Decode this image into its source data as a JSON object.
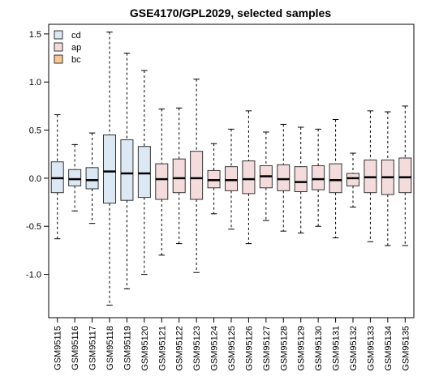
{
  "chart_data": {
    "type": "boxplot",
    "title": "GSE4170/GPL2029, selected samples",
    "xlabel": "",
    "ylabel": "",
    "ylim": [
      -1.45,
      1.6
    ],
    "yticks": [
      -1.0,
      -0.5,
      0.0,
      0.5,
      1.0,
      1.5
    ],
    "ytick_labels": [
      "-1.0",
      "-0.5",
      "0.0",
      "0.5",
      "1.0",
      "1.5"
    ],
    "legend": {
      "placement": "top-left",
      "entries": [
        {
          "label": "cd",
          "color": "#dce8f4"
        },
        {
          "label": "ap",
          "color": "#f4dcdc"
        },
        {
          "label": "bc",
          "color": "#f8c890"
        }
      ]
    },
    "box_colors": {
      "cd": "#dce8f4",
      "ap": "#f4dcdc",
      "bc": "#f8c890"
    },
    "categories": [
      "GSM95115",
      "GSM95116",
      "GSM95117",
      "GSM95118",
      "GSM95119",
      "GSM95120",
      "GSM95121",
      "GSM95122",
      "GSM95123",
      "GSM95124",
      "GSM95125",
      "GSM95126",
      "GSM95127",
      "GSM95128",
      "GSM95129",
      "GSM95130",
      "GSM95131",
      "GSM95132",
      "GSM95133",
      "GSM95134",
      "GSM95135"
    ],
    "boxes": [
      {
        "name": "GSM95115",
        "group": "cd",
        "low": -0.63,
        "q1": -0.15,
        "median": 0.0,
        "q3": 0.17,
        "high": 0.66
      },
      {
        "name": "GSM95116",
        "group": "cd",
        "low": -0.34,
        "q1": -0.08,
        "median": -0.01,
        "q3": 0.09,
        "high": 0.35
      },
      {
        "name": "GSM95117",
        "group": "cd",
        "low": -0.47,
        "q1": -0.11,
        "median": -0.02,
        "q3": 0.11,
        "high": 0.47
      },
      {
        "name": "GSM95118",
        "group": "cd",
        "low": -1.32,
        "q1": -0.26,
        "median": 0.07,
        "q3": 0.45,
        "high": 1.52
      },
      {
        "name": "GSM95119",
        "group": "cd",
        "low": -1.15,
        "q1": -0.23,
        "median": 0.05,
        "q3": 0.4,
        "high": 1.3
      },
      {
        "name": "GSM95120",
        "group": "cd",
        "low": -1.0,
        "q1": -0.2,
        "median": 0.05,
        "q3": 0.33,
        "high": 1.12
      },
      {
        "name": "GSM95121",
        "group": "ap",
        "low": -0.8,
        "q1": -0.22,
        "median": -0.01,
        "q3": 0.15,
        "high": 0.72
      },
      {
        "name": "GSM95122",
        "group": "ap",
        "low": -0.68,
        "q1": -0.15,
        "median": 0.0,
        "q3": 0.2,
        "high": 0.73
      },
      {
        "name": "GSM95123",
        "group": "ap",
        "low": -0.98,
        "q1": -0.22,
        "median": 0.0,
        "q3": 0.28,
        "high": 1.03
      },
      {
        "name": "GSM95124",
        "group": "ap",
        "low": -0.37,
        "q1": -0.1,
        "median": -0.02,
        "q3": 0.08,
        "high": 0.36
      },
      {
        "name": "GSM95125",
        "group": "ap",
        "low": -0.53,
        "q1": -0.13,
        "median": -0.02,
        "q3": 0.12,
        "high": 0.51
      },
      {
        "name": "GSM95126",
        "group": "ap",
        "low": -0.68,
        "q1": -0.16,
        "median": -0.01,
        "q3": 0.18,
        "high": 0.7
      },
      {
        "name": "GSM95127",
        "group": "ap",
        "low": -0.44,
        "q1": -0.1,
        "median": 0.02,
        "q3": 0.13,
        "high": 0.48
      },
      {
        "name": "GSM95128",
        "group": "ap",
        "low": -0.55,
        "q1": -0.13,
        "median": -0.01,
        "q3": 0.14,
        "high": 0.56
      },
      {
        "name": "GSM95129",
        "group": "ap",
        "low": -0.57,
        "q1": -0.14,
        "median": -0.04,
        "q3": 0.12,
        "high": 0.53
      },
      {
        "name": "GSM95130",
        "group": "ap",
        "low": -0.5,
        "q1": -0.12,
        "median": -0.01,
        "q3": 0.13,
        "high": 0.51
      },
      {
        "name": "GSM95131",
        "group": "ap",
        "low": -0.62,
        "q1": -0.15,
        "median": -0.02,
        "q3": 0.15,
        "high": 0.61
      },
      {
        "name": "GSM95132",
        "group": "ap",
        "low": -0.3,
        "q1": -0.08,
        "median": 0.0,
        "q3": 0.05,
        "high": 0.26
      },
      {
        "name": "GSM95133",
        "group": "ap",
        "low": -0.66,
        "q1": -0.15,
        "median": 0.01,
        "q3": 0.19,
        "high": 0.7
      },
      {
        "name": "GSM95134",
        "group": "ap",
        "low": -0.7,
        "q1": -0.17,
        "median": 0.01,
        "q3": 0.19,
        "high": 0.69
      },
      {
        "name": "GSM95135",
        "group": "ap",
        "low": -0.7,
        "q1": -0.15,
        "median": 0.01,
        "q3": 0.21,
        "high": 0.75
      }
    ]
  }
}
